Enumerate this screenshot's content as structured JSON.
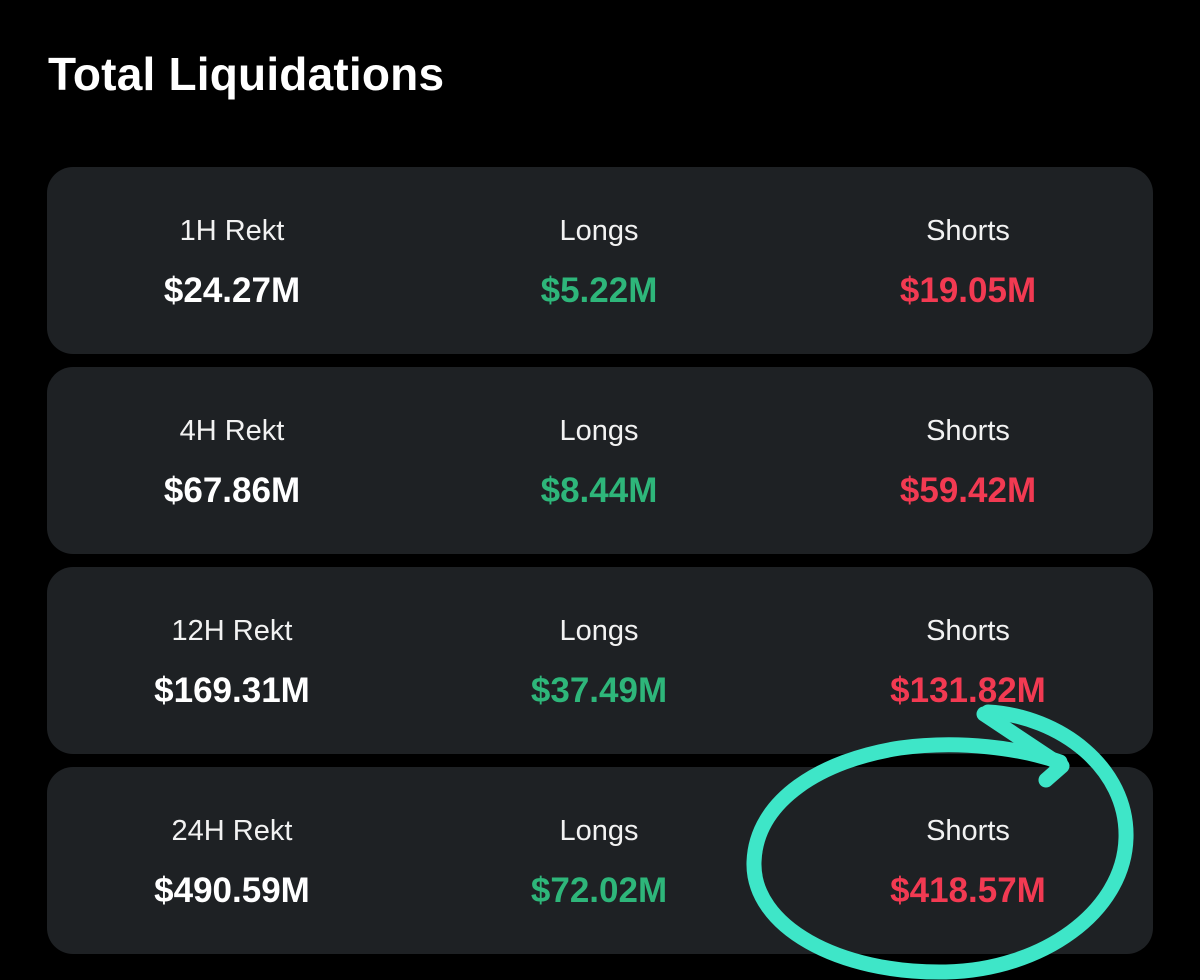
{
  "page": {
    "title": "Total Liquidations"
  },
  "colors": {
    "background": "#000000",
    "card": "#1e2124",
    "longs": "#2eb67a",
    "shorts": "#f23a52",
    "annotation": "#3ee6c8"
  },
  "rows": [
    {
      "period_label": "1H Rekt",
      "total": "$24.27M",
      "longs_label": "Longs",
      "longs": "$5.22M",
      "shorts_label": "Shorts",
      "shorts": "$19.05M"
    },
    {
      "period_label": "4H Rekt",
      "total": "$67.86M",
      "longs_label": "Longs",
      "longs": "$8.44M",
      "shorts_label": "Shorts",
      "shorts": "$59.42M"
    },
    {
      "period_label": "12H Rekt",
      "total": "$169.31M",
      "longs_label": "Longs",
      "longs": "$37.49M",
      "shorts_label": "Shorts",
      "shorts": "$131.82M"
    },
    {
      "period_label": "24H Rekt",
      "total": "$490.59M",
      "longs_label": "Longs",
      "longs": "$72.02M",
      "shorts_label": "Shorts",
      "shorts": "$418.57M"
    }
  ],
  "annotation": {
    "icon": "hand-drawn-circle-arrow-icon",
    "highlighted": "24H Shorts"
  }
}
